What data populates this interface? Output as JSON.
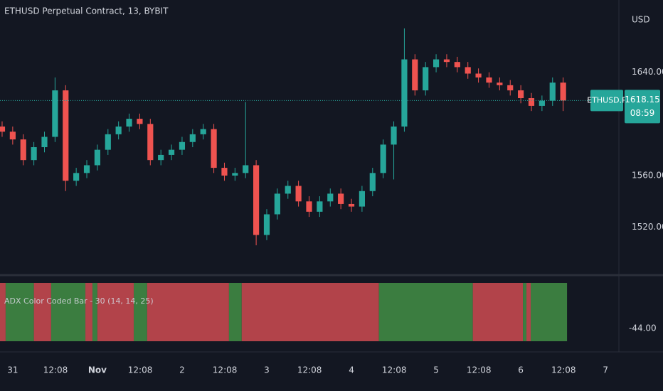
{
  "chart_data": [
    {
      "type": "candlestick",
      "title": "ETHUSD Perpetual Contract, 13, BYBIT",
      "y_axis_label": "USD",
      "x": [
        -3,
        0,
        3,
        6,
        9,
        12,
        15,
        18,
        21,
        24,
        27,
        30,
        33,
        36,
        39,
        42,
        45,
        48,
        51,
        54,
        57,
        60,
        63,
        66,
        69,
        72,
        75,
        78,
        81,
        84,
        87,
        90,
        93,
        96,
        99,
        102,
        105,
        108,
        111,
        114,
        117,
        120,
        123,
        126,
        129,
        132,
        135,
        138,
        141,
        144,
        147,
        150,
        153,
        156
      ],
      "open": [
        1598,
        1594,
        1588,
        1572,
        1582,
        1590,
        1626,
        1556,
        1562,
        1568,
        1580,
        1592,
        1598,
        1604,
        1600,
        1572,
        1576,
        1580,
        1586,
        1592,
        1596,
        1566,
        1560,
        1562,
        1568,
        1514,
        1530,
        1546,
        1552,
        1540,
        1532,
        1540,
        1546,
        1538,
        1536,
        1548,
        1562,
        1584,
        1598,
        1650,
        1626,
        1644,
        1650,
        1648,
        1644,
        1639,
        1636,
        1632,
        1630,
        1626,
        1620,
        1614,
        1618,
        1632
      ],
      "high": [
        1602,
        1598,
        1592,
        1586,
        1594,
        1636,
        1630,
        1566,
        1572,
        1584,
        1596,
        1602,
        1608,
        1608,
        1604,
        1580,
        1584,
        1590,
        1596,
        1600,
        1600,
        1570,
        1566,
        1617,
        1572,
        1534,
        1550,
        1556,
        1556,
        1544,
        1544,
        1550,
        1550,
        1542,
        1552,
        1566,
        1588,
        1602,
        1674,
        1654,
        1648,
        1654,
        1654,
        1652,
        1648,
        1643,
        1640,
        1636,
        1634,
        1630,
        1624,
        1622,
        1636,
        1636
      ],
      "low": [
        1590,
        1584,
        1568,
        1568,
        1578,
        1586,
        1548,
        1552,
        1558,
        1564,
        1576,
        1588,
        1594,
        1596,
        1568,
        1568,
        1572,
        1576,
        1582,
        1588,
        1562,
        1556,
        1556,
        1558,
        1506,
        1510,
        1526,
        1542,
        1536,
        1528,
        1528,
        1536,
        1534,
        1532,
        1532,
        1544,
        1558,
        1557,
        1594,
        1622,
        1622,
        1640,
        1644,
        1640,
        1635,
        1632,
        1628,
        1626,
        1622,
        1616,
        1610,
        1610,
        1614,
        1610
      ],
      "close": [
        1594,
        1588,
        1572,
        1582,
        1590,
        1626,
        1556,
        1562,
        1568,
        1580,
        1592,
        1598,
        1604,
        1600,
        1572,
        1576,
        1580,
        1586,
        1592,
        1596,
        1566,
        1560,
        1562,
        1568,
        1514,
        1530,
        1546,
        1552,
        1540,
        1532,
        1540,
        1546,
        1538,
        1536,
        1548,
        1562,
        1584,
        1598,
        1650,
        1626,
        1644,
        1650,
        1648,
        1644,
        1639,
        1636,
        1632,
        1630,
        1626,
        1620,
        1614,
        1618,
        1632,
        1618.15
      ],
      "up_color": "#26a69a",
      "down_color": "#ef5350",
      "ylim": [
        1484,
        1696
      ],
      "yticks": [
        {
          "value": 1520,
          "label": "1520.00"
        },
        {
          "value": 1560,
          "label": "1560.00"
        },
        {
          "value": 1640,
          "label": "1640.00"
        }
      ],
      "xlim": [
        -3.6,
        171.8
      ],
      "xticks": [
        {
          "value": 0,
          "label": "31"
        },
        {
          "value": 12.13,
          "label": "12:08"
        },
        {
          "value": 24,
          "label": "Nov"
        },
        {
          "value": 36.13,
          "label": "12:08"
        },
        {
          "value": 48,
          "label": "2"
        },
        {
          "value": 60.13,
          "label": "12:08"
        },
        {
          "value": 72,
          "label": "3"
        },
        {
          "value": 84.13,
          "label": "12:08"
        },
        {
          "value": 96,
          "label": "4"
        },
        {
          "value": 108.13,
          "label": "12:08"
        },
        {
          "value": 120,
          "label": "5"
        },
        {
          "value": 132.13,
          "label": "12:08"
        },
        {
          "value": 144,
          "label": "6"
        },
        {
          "value": 156.13,
          "label": "12:08"
        },
        {
          "value": 168,
          "label": "7"
        }
      ],
      "grid": true,
      "last_price": {
        "symbol": "ETHUSD.P",
        "value": 1618.15,
        "countdown": "08:59",
        "color": "#26a69a"
      }
    },
    {
      "type": "segments",
      "title": "ADX Color Coded Bar - 30 (14, 14, 25)",
      "edges": [
        -3.6,
        -2.0,
        6.0,
        10.9,
        20.6,
        22.6,
        24.0,
        34.3,
        38.1,
        61.3,
        64.9,
        103.8,
        130.4,
        144.6,
        145.6,
        146.8,
        157.1
      ],
      "colors": [
        "#b2434a",
        "#3b7d40",
        "#b2434a",
        "#3b7d40",
        "#b2434a",
        "#3b7d40",
        "#b2434a",
        "#3b7d40",
        "#b2434a",
        "#3b7d40",
        "#b2434a",
        "#3b7d40",
        "#b2434a",
        "#3b7d40",
        "#b2434a",
        "#3b7d40"
      ],
      "ylim": [
        -50,
        -30
      ],
      "yticks": [
        {
          "value": -44,
          "label": "-44.00"
        }
      ]
    }
  ]
}
